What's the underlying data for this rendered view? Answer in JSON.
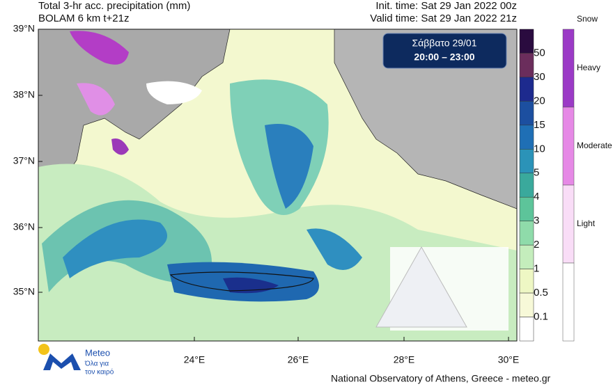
{
  "header": {
    "title_line1": "Total 3-hr acc. precipitation (mm)",
    "title_line2": "BOLAM 6 km t+21z",
    "init_time": "Init. time: Sat 29 Jan 2022 00z",
    "valid_time": "Valid time: Sat 29 Jan 2022 21z"
  },
  "map": {
    "lat_labels": [
      "39°N",
      "38°N",
      "37°N",
      "36°N",
      "35°N"
    ],
    "lon_labels": [
      "24°E",
      "26°E",
      "28°E",
      "30°E"
    ],
    "date_box": {
      "day": "Σάββατο 29/01",
      "hours": "20:00 – 23:00"
    }
  },
  "precip_scale": {
    "levels": [
      50,
      30,
      20,
      15,
      10,
      5,
      4,
      3,
      2,
      1,
      0.5,
      0.1
    ]
  },
  "snow_scale": {
    "title": "Snow",
    "labels": [
      "Heavy",
      "Moderate",
      "Light"
    ]
  },
  "footer": {
    "logo_name": "Meteo",
    "logo_tagline_1": "Όλα για",
    "logo_tagline_2": "τον καιρό",
    "credit": "National Observatory of Athens, Greece - meteo.gr"
  }
}
